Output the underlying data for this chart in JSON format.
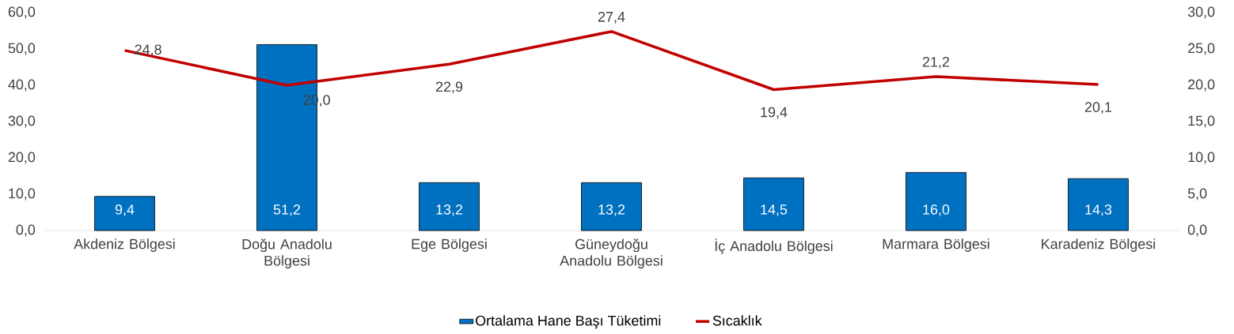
{
  "chart_data": {
    "type": "bar",
    "categories": [
      "Akdeniz Bölgesi",
      "Doğu Anadolu Bölgesi",
      "Ege Bölgesi",
      "Güneydoğu Anadolu Bölgesi",
      "İç Anadolu Bölgesi",
      "Marmara Bölgesi",
      "Karadeniz Bölgesi"
    ],
    "series": [
      {
        "name": "Ortalama Hane Başı Tüketimi",
        "color": "#0070c0",
        "values": [
          9.4,
          51.2,
          13.2,
          13.2,
          14.5,
          16.0,
          14.3
        ],
        "value_labels": [
          "9,4",
          "51,2",
          "13,2",
          "13,2",
          "14,5",
          "16,0",
          "14,3"
        ]
      },
      {
        "name": "Sıcaklık",
        "type": "line",
        "axis": "y2",
        "color": "#c00000",
        "values": [
          24.8,
          20.0,
          22.9,
          27.4,
          19.4,
          21.2,
          20.1
        ],
        "value_labels": [
          "24,8",
          "20,0",
          "22,9",
          "27,4",
          "19,4",
          "21,2",
          "20,1"
        ]
      }
    ],
    "ylim": [
      0,
      60
    ],
    "yticks": [
      {
        "value": 0,
        "label": "0,0"
      },
      {
        "value": 10,
        "label": "10,0"
      },
      {
        "value": 20,
        "label": "20,0"
      },
      {
        "value": 30,
        "label": "30,0"
      },
      {
        "value": 40,
        "label": "40,0"
      },
      {
        "value": 50,
        "label": "50,0"
      },
      {
        "value": 60,
        "label": "60,0"
      }
    ],
    "y2lim": [
      0,
      30
    ],
    "y2ticks": [
      {
        "value": 0,
        "label": "0,0"
      },
      {
        "value": 5,
        "label": "5,0"
      },
      {
        "value": 10,
        "label": "10,0"
      },
      {
        "value": 15,
        "label": "15,0"
      },
      {
        "value": 20,
        "label": "20,0"
      },
      {
        "value": 25,
        "label": "25,0"
      },
      {
        "value": 30,
        "label": "30,0"
      }
    ],
    "legend": "bottom"
  }
}
